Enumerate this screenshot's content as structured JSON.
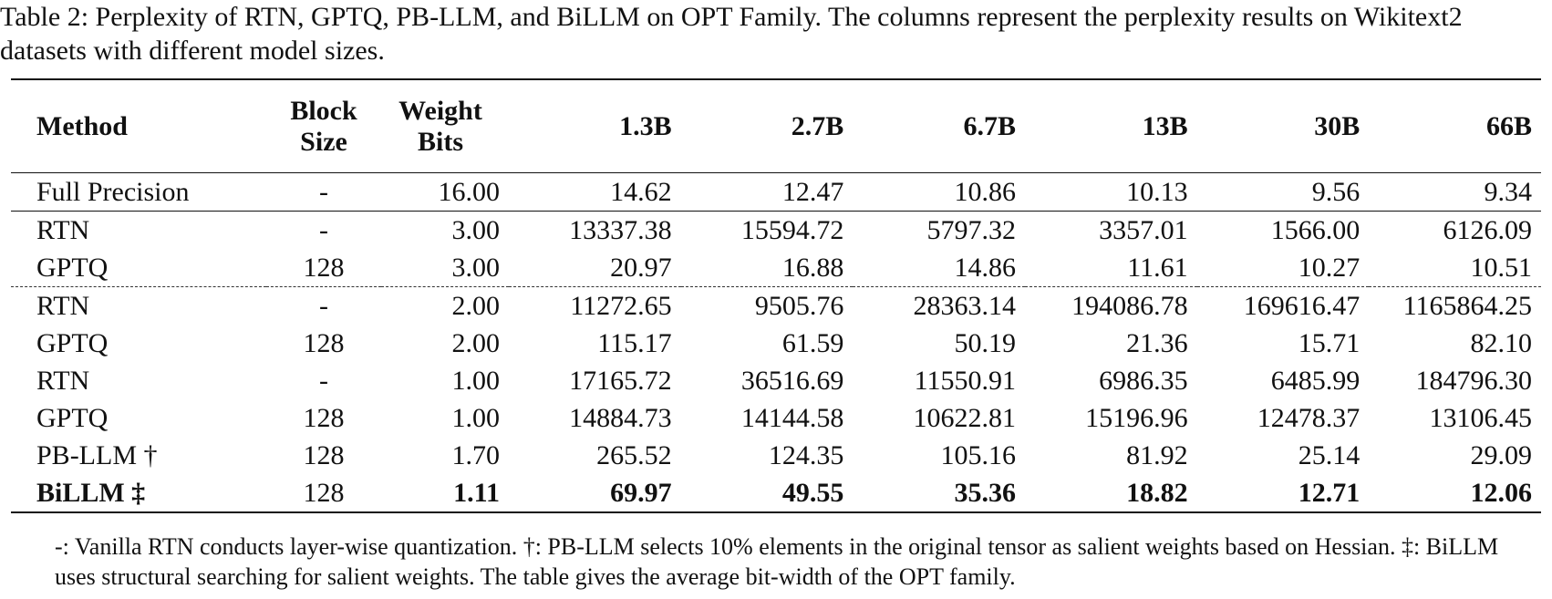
{
  "caption": "Table 2: Perplexity of RTN, GPTQ, PB-LLM, and BiLLM on OPT Family. The columns represent the perplexity results on Wikitext2 datasets with different model sizes.",
  "table": {
    "headers": {
      "method": "Method",
      "block_size": [
        "Block",
        "Size"
      ],
      "weight_bits": [
        "Weight",
        "Bits"
      ],
      "sizes": [
        "1.3B",
        "2.7B",
        "6.7B",
        "13B",
        "30B",
        "66B"
      ]
    },
    "rows": [
      {
        "method": "Full Precision",
        "block": "-",
        "bits": "16.00",
        "values": [
          "14.62",
          "12.47",
          "10.86",
          "10.13",
          "9.56",
          "9.34"
        ]
      },
      {
        "method": "RTN",
        "block": "-",
        "bits": "3.00",
        "values": [
          "13337.38",
          "15594.72",
          "5797.32",
          "3357.01",
          "1566.00",
          "6126.09"
        ]
      },
      {
        "method": "GPTQ",
        "block": "128",
        "bits": "3.00",
        "values": [
          "20.97",
          "16.88",
          "14.86",
          "11.61",
          "10.27",
          "10.51"
        ]
      },
      {
        "method": "RTN",
        "block": "-",
        "bits": "2.00",
        "values": [
          "11272.65",
          "9505.76",
          "28363.14",
          "194086.78",
          "169616.47",
          "1165864.25"
        ]
      },
      {
        "method": "GPTQ",
        "block": "128",
        "bits": "2.00",
        "values": [
          "115.17",
          "61.59",
          "50.19",
          "21.36",
          "15.71",
          "82.10"
        ]
      },
      {
        "method": "RTN",
        "block": "-",
        "bits": "1.00",
        "values": [
          "17165.72",
          "36516.69",
          "11550.91",
          "6986.35",
          "6485.99",
          "184796.30"
        ]
      },
      {
        "method": "GPTQ",
        "block": "128",
        "bits": "1.00",
        "values": [
          "14884.73",
          "14144.58",
          "10622.81",
          "15196.96",
          "12478.37",
          "13106.45"
        ]
      },
      {
        "method": "PB-LLM †",
        "block": "128",
        "bits": "1.70",
        "values": [
          "265.52",
          "124.35",
          "105.16",
          "81.92",
          "25.14",
          "29.09"
        ]
      },
      {
        "method": "BiLLM ‡",
        "block": "128",
        "bits": "1.11",
        "values": [
          "69.97",
          "49.55",
          "35.36",
          "18.82",
          "12.71",
          "12.06"
        ]
      }
    ]
  },
  "notes": "-: Vanilla RTN conducts layer-wise quantization. †: PB-LLM selects 10% elements in the original tensor as salient weights based on Hessian. ‡: BiLLM uses structural searching for salient weights. The table gives the average bit-width of the OPT family."
}
